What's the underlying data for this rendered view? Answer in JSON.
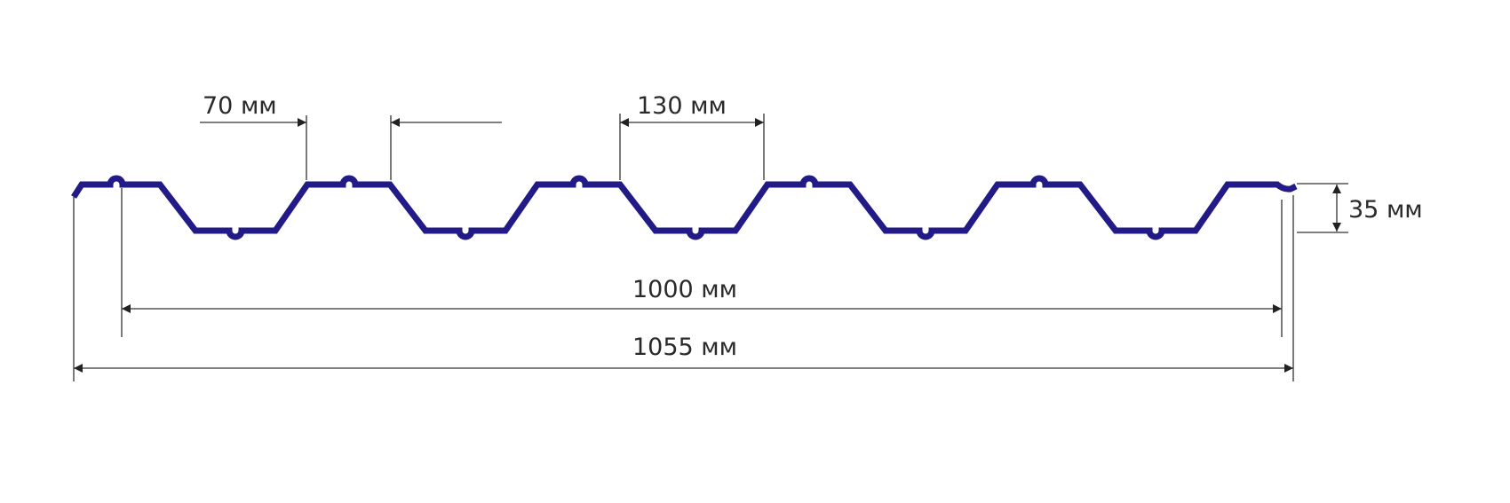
{
  "colors": {
    "profile": "#221a86",
    "dimension": "#333333"
  },
  "labels": {
    "rib_top": "70 мм",
    "pitch": "130 мм",
    "height": "35 мм",
    "useful_width": "1000 мм",
    "total_width": "1055 мм"
  },
  "profile": {
    "crests": 6,
    "troughs": 5
  }
}
